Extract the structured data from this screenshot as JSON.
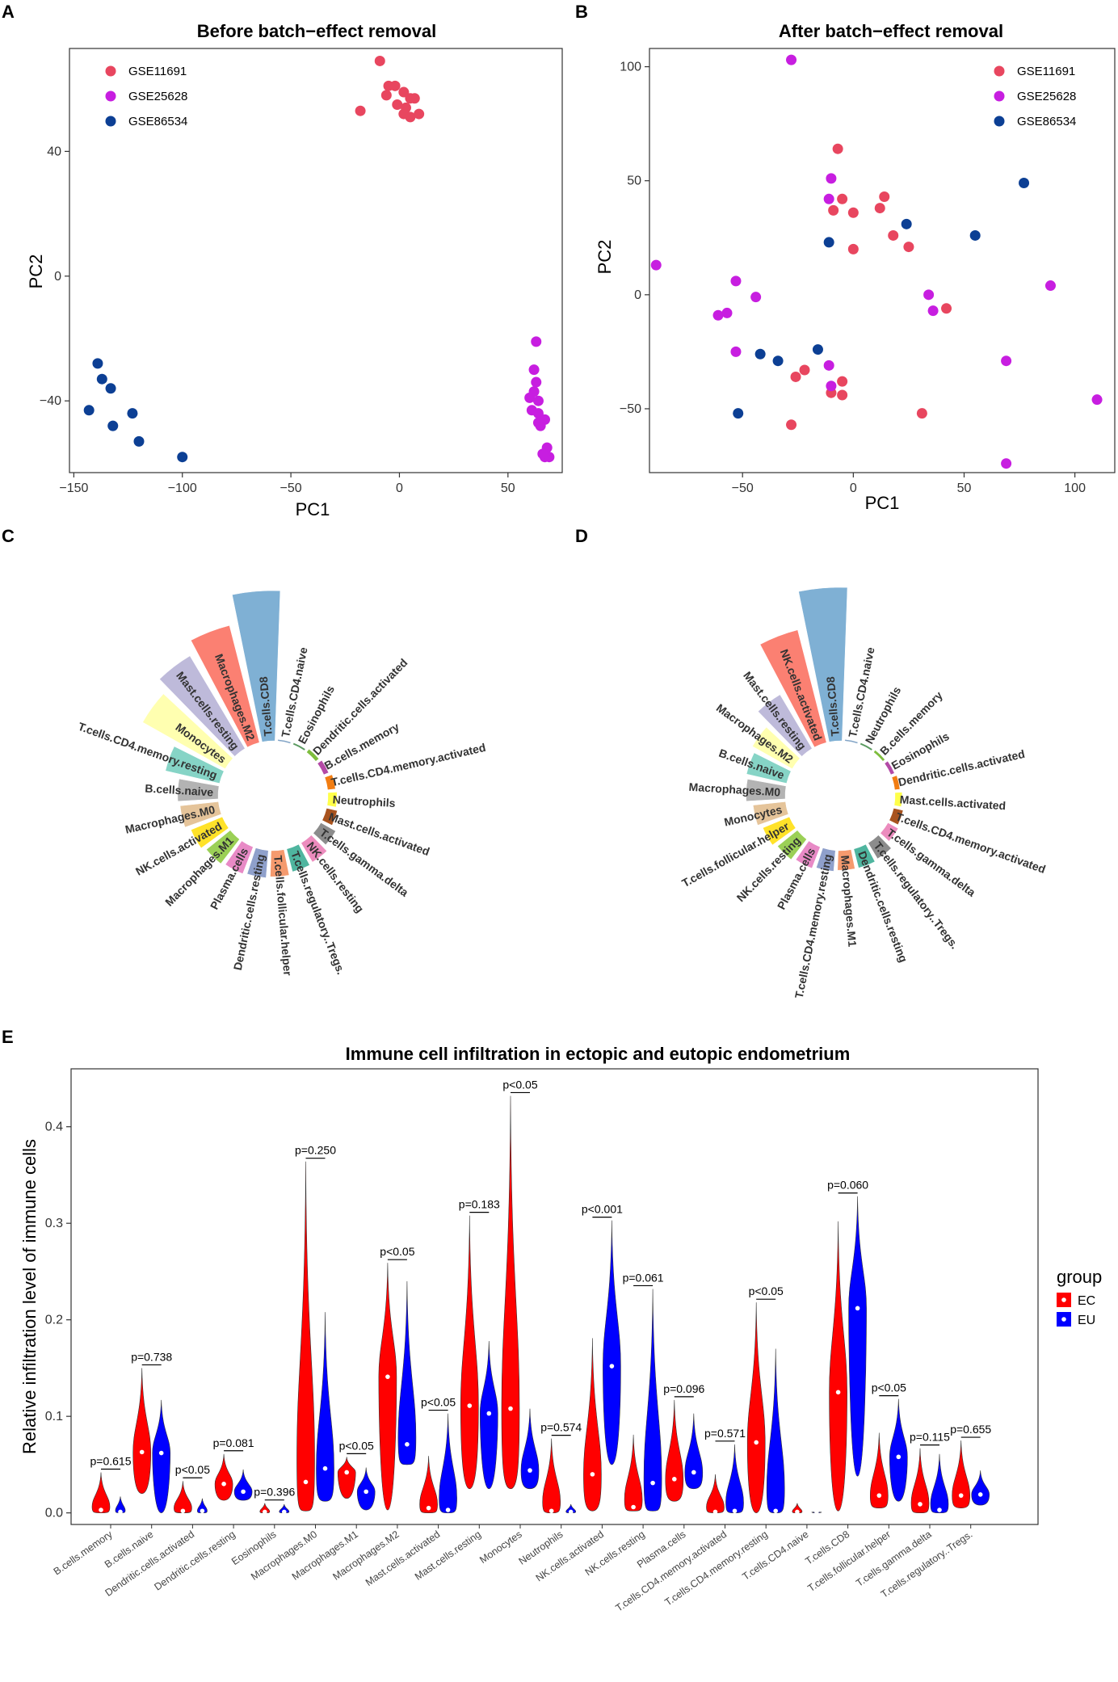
{
  "panels": {
    "A": {
      "letter": "A",
      "title": "Before batch−effect removal",
      "xlabel": "PC1",
      "ylabel": "PC2"
    },
    "B": {
      "letter": "B",
      "title": "After batch−effect removal",
      "xlabel": "PC1",
      "ylabel": "PC2"
    },
    "C": {
      "letter": "C"
    },
    "D": {
      "letter": "D"
    },
    "E": {
      "letter": "E",
      "title": "Immune cell infiltration in ectopic and eutopic endometrium",
      "ylabel": "Relative infiltration level of immune cells",
      "legend_title": "group"
    }
  },
  "colors": {
    "GSE11691": "#e8465f",
    "GSE25628": "#c71ee0",
    "GSE86534": "#0c3f94",
    "EC": "#ff0000",
    "EU": "#0000ff"
  },
  "chart_data": [
    {
      "id": "A",
      "type": "scatter",
      "title": "Before batch−effect removal",
      "xlabel": "PC1",
      "ylabel": "PC2",
      "xlim": [
        -152,
        75
      ],
      "ylim": [
        -63,
        73
      ],
      "xticks": [
        -150,
        -100,
        -50,
        0,
        50
      ],
      "yticks": [
        -40,
        0,
        40
      ],
      "legend": [
        "GSE11691",
        "GSE25628",
        "GSE86534"
      ],
      "series": [
        {
          "name": "GSE11691",
          "points": [
            [
              -9,
              69
            ],
            [
              -18,
              53
            ],
            [
              -5,
              61
            ],
            [
              -2,
              61
            ],
            [
              -6,
              58
            ],
            [
              2,
              59
            ],
            [
              5,
              57
            ],
            [
              7,
              57
            ],
            [
              9,
              52
            ],
            [
              3,
              54
            ],
            [
              2,
              52
            ],
            [
              5,
              51
            ],
            [
              -1,
              55
            ]
          ]
        },
        {
          "name": "GSE25628",
          "points": [
            [
              63,
              -21
            ],
            [
              62,
              -30
            ],
            [
              63,
              -34
            ],
            [
              62,
              -37
            ],
            [
              60,
              -39
            ],
            [
              64,
              -40
            ],
            [
              61,
              -43
            ],
            [
              64,
              -44
            ],
            [
              67,
              -46
            ],
            [
              65,
              -48
            ],
            [
              64,
              -47
            ],
            [
              68,
              -55
            ],
            [
              69,
              -58
            ],
            [
              67,
              -58
            ],
            [
              66,
              -57
            ]
          ]
        },
        {
          "name": "GSE86534",
          "points": [
            [
              -139,
              -28
            ],
            [
              -137,
              -33
            ],
            [
              -133,
              -36
            ],
            [
              -143,
              -43
            ],
            [
              -123,
              -44
            ],
            [
              -132,
              -48
            ],
            [
              -120,
              -53
            ],
            [
              -100,
              -58
            ]
          ]
        }
      ]
    },
    {
      "id": "B",
      "type": "scatter",
      "title": "After batch−effect removal",
      "xlabel": "PC1",
      "ylabel": "PC2",
      "xlim": [
        -92,
        118
      ],
      "ylim": [
        -78,
        108
      ],
      "xticks": [
        -50,
        0,
        50,
        100
      ],
      "yticks": [
        -50,
        0,
        50,
        100
      ],
      "legend": [
        "GSE11691",
        "GSE25628",
        "GSE86534"
      ],
      "series": [
        {
          "name": "GSE11691",
          "points": [
            [
              -7,
              64
            ],
            [
              -9,
              37
            ],
            [
              -5,
              42
            ],
            [
              0,
              36
            ],
            [
              0,
              20
            ],
            [
              12,
              38
            ],
            [
              14,
              43
            ],
            [
              18,
              26
            ],
            [
              25,
              21
            ],
            [
              -22,
              -33
            ],
            [
              -26,
              -36
            ],
            [
              -5,
              -38
            ],
            [
              -5,
              -44
            ],
            [
              -10,
              -43
            ],
            [
              -28,
              -57
            ],
            [
              31,
              -52
            ],
            [
              42,
              -6
            ]
          ]
        },
        {
          "name": "GSE25628",
          "points": [
            [
              -28,
              103
            ],
            [
              -10,
              51
            ],
            [
              -11,
              42
            ],
            [
              -89,
              13
            ],
            [
              -53,
              6
            ],
            [
              -44,
              -1
            ],
            [
              -57,
              -8
            ],
            [
              -61,
              -9
            ],
            [
              -53,
              -25
            ],
            [
              -11,
              -31
            ],
            [
              -10,
              -40
            ],
            [
              34,
              0
            ],
            [
              36,
              -7
            ],
            [
              69,
              -29
            ],
            [
              69,
              -74
            ],
            [
              89,
              4
            ],
            [
              110,
              -46
            ]
          ]
        },
        {
          "name": "GSE86534",
          "points": [
            [
              -11,
              23
            ],
            [
              24,
              31
            ],
            [
              55,
              26
            ],
            [
              77,
              49
            ],
            [
              -42,
              -26
            ],
            [
              -34,
              -29
            ],
            [
              -16,
              -24
            ],
            [
              -52,
              -52
            ]
          ]
        }
      ]
    },
    {
      "id": "C",
      "type": "bar",
      "subtype": "circular",
      "categories": [
        "T.cells.CD8",
        "T.cells.CD4.naive",
        "Eosinophils",
        "Dendritic.cells.activated",
        "B.cells.memory",
        "T.cells.CD4.memory.activated",
        "Neutrophils",
        "Mast.cells.activated",
        "T.cells.gamma.delta",
        "NK.cells.resting",
        "T.cells.regulatory..Tregs.",
        "T.cells.follicular.helper",
        "Dendritic.cells.resting",
        "Plasma.cells",
        "Macrophages.M1",
        "NK.cells.activated",
        "Macrophages.M0",
        "B.cells.naive",
        "T.cells.CD4.memory.resting",
        "Monocytes",
        "Mast.cells.resting",
        "Macrophages.M2"
      ],
      "values": [
        0.23,
        0.002,
        0.003,
        0.006,
        0.008,
        0.012,
        0.014,
        0.017,
        0.026,
        0.034,
        0.036,
        0.04,
        0.042,
        0.044,
        0.047,
        0.052,
        0.059,
        0.062,
        0.085,
        0.145,
        0.165,
        0.185
      ],
      "colors": [
        "#7fb0d4",
        "#82a4c6",
        "#5b9b61",
        "#7ebd3d",
        "#b34aa6",
        "#f27d12",
        "#ffff4a",
        "#a8531e",
        "#8c8c8c",
        "#ec8cbe",
        "#4fb59f",
        "#f59a6e",
        "#8fa0cb",
        "#e88ac6",
        "#9bd056",
        "#ffe229",
        "#e5c49a",
        "#b3b3b3",
        "#86d4c6",
        "#ffffb0",
        "#bebada",
        "#fb8072"
      ]
    },
    {
      "id": "D",
      "type": "bar",
      "subtype": "circular",
      "categories": [
        "T.cells.CD8",
        "T.cells.CD4.naive",
        "Neutrophils",
        "B.cells.memory",
        "Eosinophils",
        "Dendritic.cells.activated",
        "Mast.cells.activated",
        "T.cells.CD4.memory.activated",
        "T.cells.gamma.delta",
        "T.cells.regulatory..Tregs.",
        "Dendritic.cells.resting",
        "Macrophages.M1",
        "T.cells.CD4.memory.resting",
        "Plasma.cells",
        "NK.cells.resting",
        "T.cells.follicular.helper",
        "Monocytes",
        "Macrophages.M0",
        "B.cells.naive",
        "Macrophages.M2",
        "Mast.cells.resting",
        "NK.cells.activated"
      ],
      "values": [
        0.235,
        0.002,
        0.003,
        0.004,
        0.006,
        0.008,
        0.011,
        0.015,
        0.018,
        0.028,
        0.03,
        0.03,
        0.032,
        0.035,
        0.039,
        0.044,
        0.05,
        0.06,
        0.063,
        0.07,
        0.096,
        0.178
      ],
      "colors": [
        "#7fb0d4",
        "#82a4c6",
        "#5b9b61",
        "#7ebd3d",
        "#b34aa6",
        "#f27d12",
        "#ffff4a",
        "#a8531e",
        "#ec8cbe",
        "#8c8c8c",
        "#4fb59f",
        "#f59a6e",
        "#8fa0cb",
        "#e88ac6",
        "#9bd056",
        "#ffe229",
        "#e5c49a",
        "#b3b3b3",
        "#86d4c6",
        "#ffffb0",
        "#bebada",
        "#fb8072"
      ]
    },
    {
      "id": "E",
      "type": "violin",
      "title": "Immune cell infiltration in ectopic and eutopic endometrium",
      "ylabel": "Relative infiltration level of immune cells",
      "ylim": [
        -0.012,
        0.46
      ],
      "yticks": [
        0.0,
        0.1,
        0.2,
        0.3,
        0.4
      ],
      "yticklabels": [
        "0.0",
        "0.1",
        "0.2",
        "0.3",
        "0.4"
      ],
      "legend_title": "group",
      "groups": [
        "EC",
        "EU"
      ],
      "categories": [
        "B.cells.memory",
        "B.cells.naive",
        "Dendritic.cells.activated",
        "Dendritic.cells.resting",
        "Eosinophils",
        "Macrophages.M0",
        "Macrophages.M1",
        "Macrophages.M2",
        "Mast.cells.activated",
        "Mast.cells.resting",
        "Monocytes",
        "Neutrophils",
        "NK.cells.activated",
        "NK.cells.resting",
        "Plasma.cells",
        "T.cells.CD4.memory.activated",
        "T.cells.CD4.memory.resting",
        "T.cells.CD4.naive",
        "T.cells.CD8",
        "T.cells.follicular.helper",
        "T.cells.gamma.delta",
        "T.cells.regulatory..Tregs."
      ],
      "p_values": [
        "p=0.615",
        "p=0.738",
        "p<0.05",
        "p=0.081",
        "p=0.396",
        "p=0.250",
        "p<0.05",
        "p<0.05",
        "p<0.05",
        "p=0.183",
        "p<0.05",
        "p=0.574",
        "p<0.001",
        "p=0.061",
        "p=0.096",
        "p=0.571",
        "p<0.05",
        "",
        "p=0.060",
        "p<0.05",
        "p=0.115",
        "p=0.655"
      ],
      "EC": {
        "min": [
          0,
          0.02,
          0,
          0.013,
          0,
          0.002,
          0.015,
          0.003,
          0,
          0.025,
          0.025,
          0,
          0.002,
          0.002,
          0.012,
          0,
          0,
          0,
          0.002,
          0.005,
          0,
          0.005
        ],
        "max": [
          0.042,
          0.15,
          0.033,
          0.061,
          0.01,
          0.364,
          0.058,
          0.259,
          0.059,
          0.308,
          0.432,
          0.077,
          0.181,
          0.081,
          0.117,
          0.04,
          0.218,
          0.01,
          0.302,
          0.083,
          0.067,
          0.075
        ],
        "median": [
          0.003,
          0.063,
          0.002,
          0.03,
          0.001,
          0.032,
          0.042,
          0.141,
          0.005,
          0.111,
          0.108,
          0.002,
          0.04,
          0.006,
          0.035,
          0.001,
          0.073,
          0.001,
          0.125,
          0.018,
          0.009,
          0.018
        ]
      },
      "EU": {
        "min": [
          0,
          0,
          0,
          0.013,
          0,
          0.012,
          0.003,
          0.05,
          0,
          0.025,
          0.025,
          0,
          0.05,
          0.002,
          0.025,
          0,
          0,
          0,
          0.038,
          0.012,
          0,
          0.008
        ],
        "max": [
          0.017,
          0.117,
          0.015,
          0.045,
          0.009,
          0.208,
          0.047,
          0.24,
          0.103,
          0.178,
          0.108,
          0.009,
          0.303,
          0.232,
          0.103,
          0.071,
          0.17,
          0.001,
          0.328,
          0.118,
          0.061,
          0.044
        ],
        "median": [
          0.001,
          0.062,
          0.002,
          0.022,
          0.001,
          0.046,
          0.022,
          0.071,
          0.003,
          0.103,
          0.044,
          0.001,
          0.152,
          0.031,
          0.042,
          0.002,
          0.002,
          0.001,
          0.212,
          0.058,
          0.003,
          0.019
        ]
      }
    }
  ]
}
